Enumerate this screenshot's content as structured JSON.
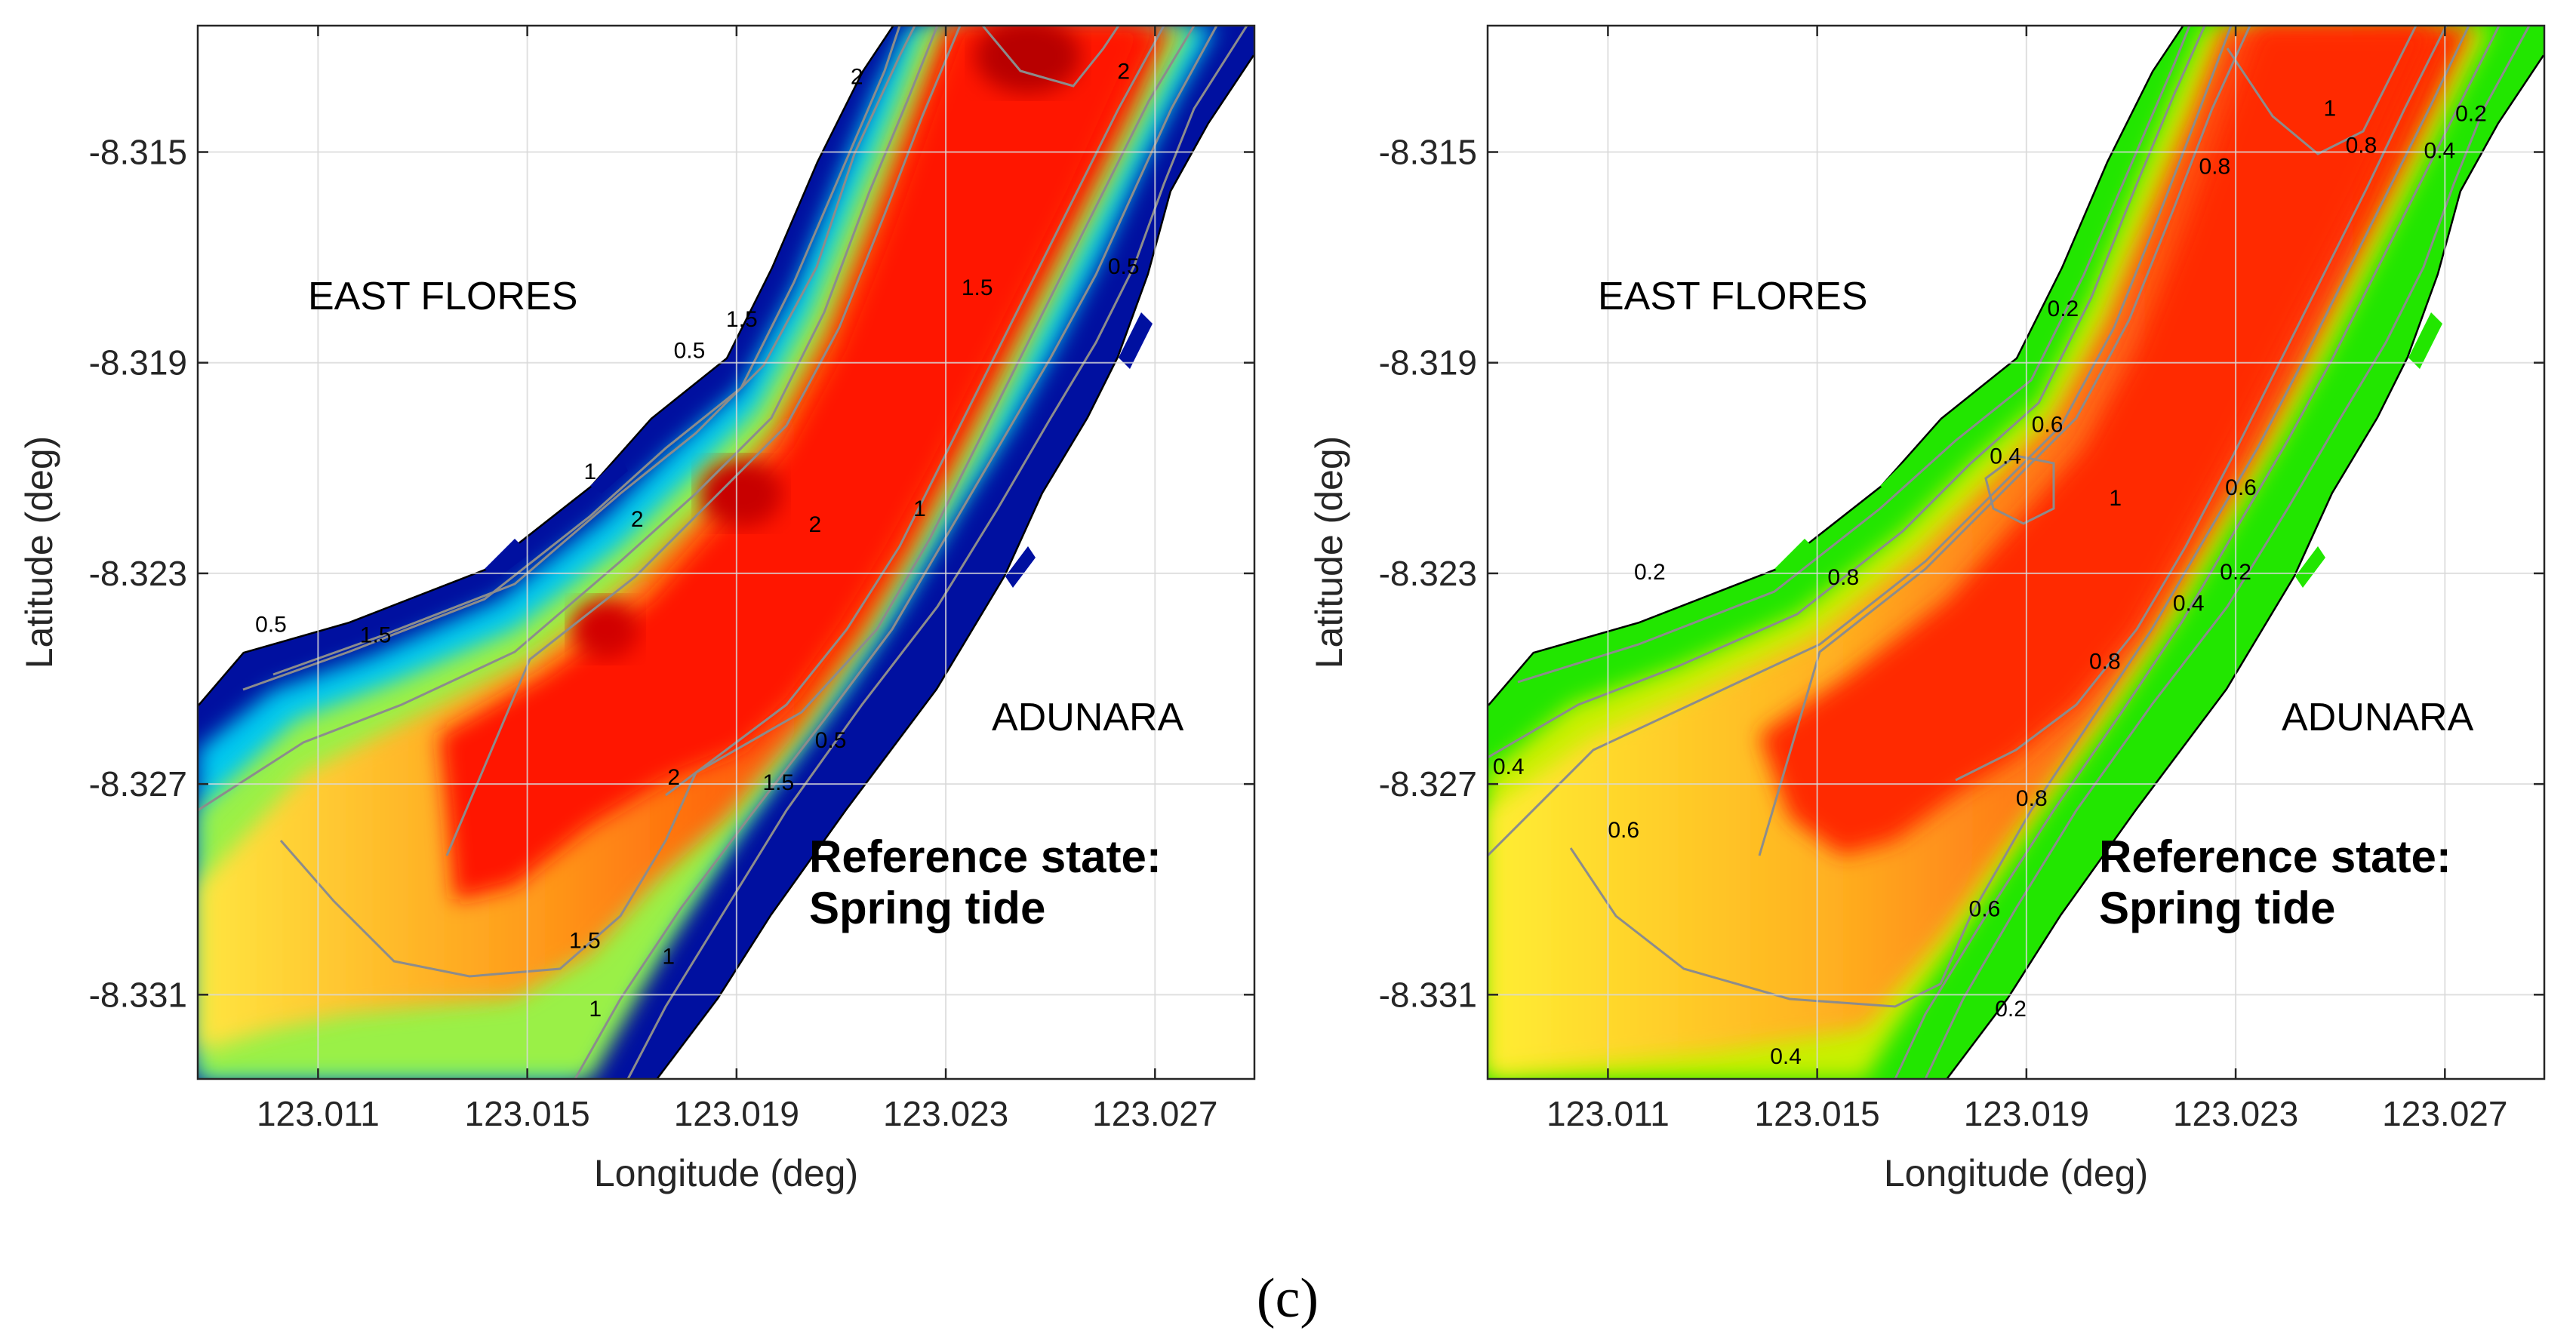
{
  "caption": "(c)",
  "chart_data": [
    {
      "type": "contour",
      "title": "",
      "xlabel": "Longitude (deg)",
      "ylabel": "Latitude (deg)",
      "xlim": [
        123.0087,
        123.0289
      ],
      "ylim": [
        -8.3326,
        -8.3126
      ],
      "x_ticks": [
        123.011,
        123.015,
        123.019,
        123.023,
        123.027
      ],
      "x_tick_labels": [
        "123.011",
        "123.015",
        "123.019",
        "123.023",
        "123.027"
      ],
      "y_ticks": [
        -8.315,
        -8.319,
        -8.323,
        -8.327,
        -8.331
      ],
      "y_tick_labels": [
        "-8.315",
        "-8.319",
        "-8.323",
        "-8.327",
        "-8.331"
      ],
      "grid": true,
      "colormap": "jet",
      "regions": [
        "EAST FLORES",
        "ADUNARA"
      ],
      "annotation": [
        "Reference state:",
        "Spring tide"
      ],
      "contour_levels": [
        0.5,
        1,
        1.5,
        2
      ],
      "contour_labels": [
        {
          "text": "2",
          "lon": 123.0213,
          "lat": -8.3136
        },
        {
          "text": "2",
          "lon": 123.0264,
          "lat": -8.3135
        },
        {
          "text": "0.5",
          "lon": 123.0181,
          "lat": -8.3188
        },
        {
          "text": "1.5",
          "lon": 123.0191,
          "lat": -8.3182
        },
        {
          "text": "1.5",
          "lon": 123.0236,
          "lat": -8.3176
        },
        {
          "text": "0.5",
          "lon": 123.0264,
          "lat": -8.3172
        },
        {
          "text": "1",
          "lon": 123.0162,
          "lat": -8.3211
        },
        {
          "text": "2",
          "lon": 123.0171,
          "lat": -8.322
        },
        {
          "text": "2",
          "lon": 123.0205,
          "lat": -8.3221
        },
        {
          "text": "1",
          "lon": 123.0225,
          "lat": -8.3218
        },
        {
          "text": "0.5",
          "lon": 123.0101,
          "lat": -8.324
        },
        {
          "text": "1.5",
          "lon": 123.0121,
          "lat": -8.3242
        },
        {
          "text": "0.5",
          "lon": 123.0208,
          "lat": -8.3262
        },
        {
          "text": "2",
          "lon": 123.0178,
          "lat": -8.3269
        },
        {
          "text": "1.5",
          "lon": 123.0198,
          "lat": -8.327
        },
        {
          "text": "1.5",
          "lon": 123.0161,
          "lat": -8.33
        },
        {
          "text": "1",
          "lon": 123.0177,
          "lat": -8.3303
        },
        {
          "text": "1",
          "lon": 123.0163,
          "lat": -8.3313
        }
      ]
    },
    {
      "type": "contour",
      "title": "",
      "xlabel": "Longitude (deg)",
      "ylabel": "Latitude (deg)",
      "xlim": [
        123.0087,
        123.0289
      ],
      "ylim": [
        -8.3326,
        -8.3126
      ],
      "x_ticks": [
        123.011,
        123.015,
        123.019,
        123.023,
        123.027
      ],
      "x_tick_labels": [
        "123.011",
        "123.015",
        "123.019",
        "123.023",
        "123.027"
      ],
      "y_ticks": [
        -8.315,
        -8.319,
        -8.323,
        -8.327,
        -8.331
      ],
      "y_tick_labels": [
        "-8.315",
        "-8.319",
        "-8.323",
        "-8.327",
        "-8.331"
      ],
      "grid": true,
      "colormap": "green-yellow-red",
      "regions": [
        "EAST FLORES",
        "ADUNARA"
      ],
      "annotation": [
        "Reference state:",
        "Spring tide"
      ],
      "contour_levels": [
        0.2,
        0.4,
        0.6,
        0.8,
        1
      ],
      "contour_labels": [
        {
          "text": "0.2",
          "lon": 123.0275,
          "lat": -8.3143
        },
        {
          "text": "1",
          "lon": 123.0248,
          "lat": -8.3142
        },
        {
          "text": "0.8",
          "lon": 123.0254,
          "lat": -8.3149
        },
        {
          "text": "0.4",
          "lon": 123.0269,
          "lat": -8.315
        },
        {
          "text": "0.8",
          "lon": 123.0226,
          "lat": -8.3153
        },
        {
          "text": "0.2",
          "lon": 123.0197,
          "lat": -8.318
        },
        {
          "text": "0.6",
          "lon": 123.0194,
          "lat": -8.3202
        },
        {
          "text": "0.4",
          "lon": 123.0186,
          "lat": -8.3208
        },
        {
          "text": "1",
          "lon": 123.0207,
          "lat": -8.3216
        },
        {
          "text": "0.6",
          "lon": 123.0231,
          "lat": -8.3214
        },
        {
          "text": "0.8",
          "lon": 123.0155,
          "lat": -8.3231
        },
        {
          "text": "0.2",
          "lon": 123.0118,
          "lat": -8.323
        },
        {
          "text": "0.2",
          "lon": 123.023,
          "lat": -8.323
        },
        {
          "text": "0.4",
          "lon": 123.0221,
          "lat": -8.3236
        },
        {
          "text": "0.8",
          "lon": 123.0205,
          "lat": -8.3247
        },
        {
          "text": "0.4",
          "lon": 123.0091,
          "lat": -8.3267
        },
        {
          "text": "0.6",
          "lon": 123.0113,
          "lat": -8.3279
        },
        {
          "text": "0.8",
          "lon": 123.0191,
          "lat": -8.3273
        },
        {
          "text": "0.6",
          "lon": 123.0182,
          "lat": -8.3294
        },
        {
          "text": "0.4",
          "lon": 123.0144,
          "lat": -8.3322
        },
        {
          "text": "0.2",
          "lon": 123.0187,
          "lat": -8.3313
        }
      ]
    }
  ]
}
